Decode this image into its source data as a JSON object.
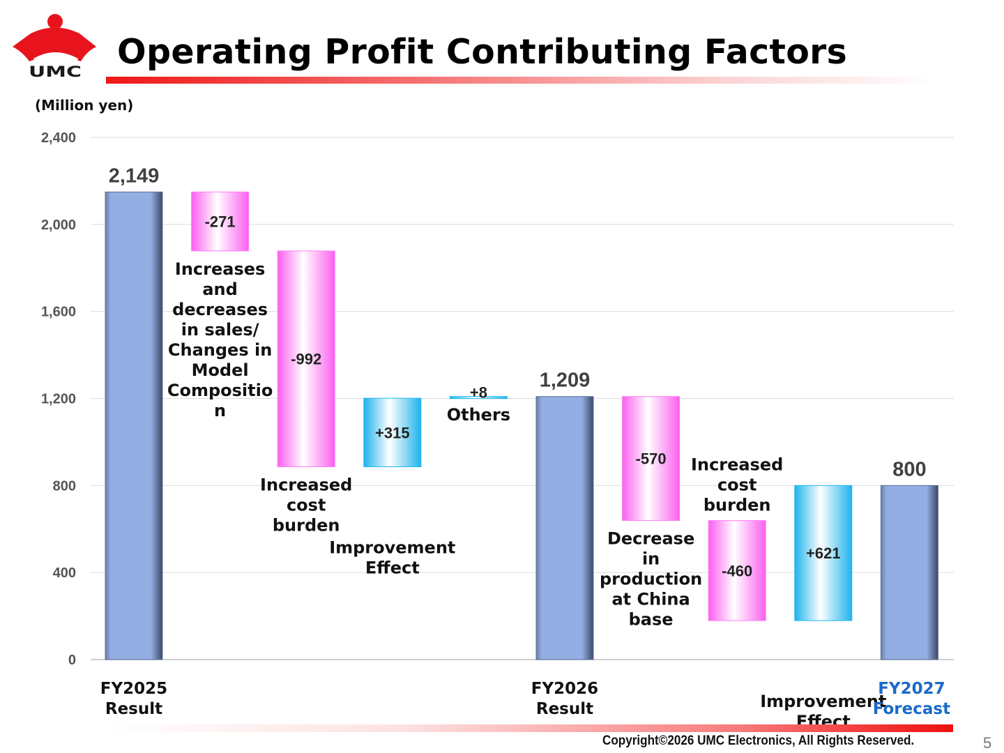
{
  "header": {
    "title": "Operating Profit Contributing Factors",
    "logo_text": "UMC"
  },
  "colors": {
    "total_bar": "#94b0e6",
    "decrease": "#ff7ff4",
    "increase": "#22b8ef",
    "forecast_label": "#1a6ac8",
    "accent_red": "#e8141d"
  },
  "footer": {
    "copyright": "Copyright©2026 UMC Electronics, All Rights Reserved.",
    "page_number": "5"
  },
  "chart_data": {
    "type": "bar",
    "subtype": "waterfall",
    "unit_label": "(Million yen)",
    "ylim": [
      0,
      2400
    ],
    "yticks": [
      0,
      400,
      800,
      1200,
      1600,
      2000,
      2400
    ],
    "ytick_labels": [
      "0",
      "400",
      "800",
      "1,200",
      "1,600",
      "2,000",
      "2,400"
    ],
    "grid": true,
    "steps": [
      {
        "kind": "total",
        "value": 2149,
        "value_label": "2,149",
        "category": [
          "FY2025",
          "Result"
        ]
      },
      {
        "kind": "decrease",
        "value": -271,
        "value_label": "-271",
        "factor": [
          "Increases",
          "and",
          "decreases",
          "in sales/",
          "Changes in",
          "Model",
          "Compositio",
          "n"
        ]
      },
      {
        "kind": "decrease",
        "value": -992,
        "value_label": "-992",
        "factor": [
          "Increased",
          "cost",
          "burden"
        ]
      },
      {
        "kind": "increase",
        "value": 315,
        "value_label": "+315",
        "factor": [
          "Improvement",
          "Effect"
        ]
      },
      {
        "kind": "increase",
        "value": 8,
        "value_label": "+8",
        "factor": [
          "Others"
        ]
      },
      {
        "kind": "total",
        "value": 1209,
        "value_label": "1,209",
        "category": [
          "FY2026",
          "Result"
        ]
      },
      {
        "kind": "decrease",
        "value": -570,
        "value_label": "-570",
        "factor": [
          "Decrease",
          "in",
          "production",
          "at China",
          "base"
        ]
      },
      {
        "kind": "decrease",
        "value": -460,
        "value_label": "-460",
        "factor": [
          "Increased",
          "cost",
          "burden"
        ]
      },
      {
        "kind": "increase",
        "value": 621,
        "value_label": "+621",
        "factor": [
          "Improvement",
          "Effect"
        ]
      },
      {
        "kind": "total",
        "value": 800,
        "value_label": "800",
        "category": [
          "FY2027",
          "Forecast"
        ],
        "highlight": true
      }
    ]
  }
}
